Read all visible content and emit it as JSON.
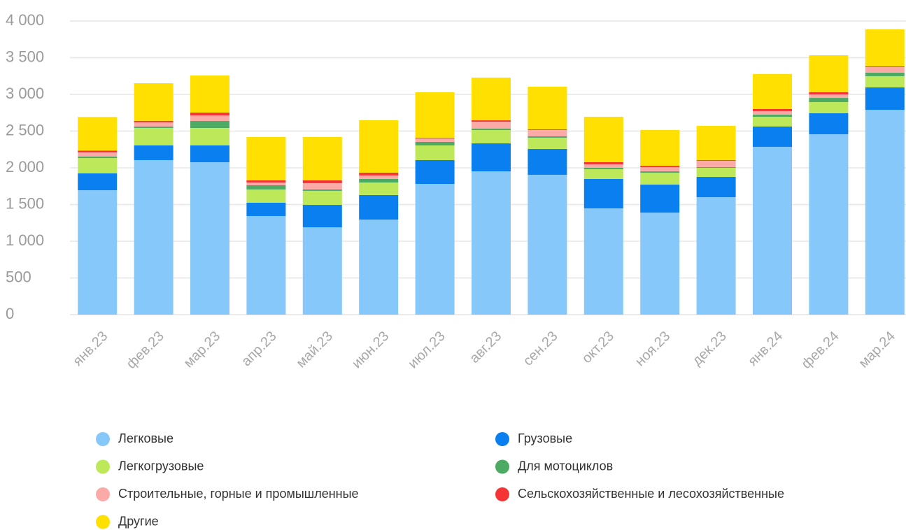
{
  "chart_data": {
    "type": "stacked_bar",
    "categories": [
      "янв.23",
      "фев.23",
      "мар.23",
      "апр.23",
      "май.23",
      "июн.23",
      "июл.23",
      "авг.23",
      "сен.23",
      "окт.23",
      "ноя.23",
      "дек.23",
      "янв.24",
      "фев.24",
      "мар.24"
    ],
    "ylim": [
      0,
      4000
    ],
    "yticks": [
      0,
      500,
      {
        "value": 1000,
        "label": "1 000"
      },
      {
        "value": 1500,
        "label": "1 500"
      },
      {
        "value": 2000,
        "label": "2 000"
      },
      {
        "value": 2500,
        "label": "2 500"
      },
      {
        "value": 3000,
        "label": "3 000"
      },
      {
        "value": 3500,
        "label": "3 500"
      },
      {
        "value": 4000,
        "label": "4 000"
      }
    ],
    "grid": true,
    "series": [
      {
        "name": "Легковые",
        "color": "#86c8fa",
        "values": [
          1695,
          2105,
          2076,
          1343,
          1190,
          1295,
          1781,
          1952,
          1905,
          1448,
          1390,
          1600,
          2286,
          2457,
          2790
        ]
      },
      {
        "name": "Грузовые",
        "color": "#0a7ff0",
        "values": [
          229,
          200,
          229,
          181,
          305,
          334,
          324,
          381,
          352,
          400,
          381,
          276,
          276,
          286,
          305
        ]
      },
      {
        "name": "Легкогрузовые",
        "color": "#bde85a",
        "values": [
          209,
          238,
          238,
          181,
          191,
          171,
          200,
          181,
          153,
          133,
          162,
          124,
          133,
          152,
          153
        ]
      },
      {
        "name": "Для мотоциклов",
        "color": "#4caa62",
        "values": [
          20,
          20,
          95,
          57,
          19,
          48,
          48,
          19,
          19,
          19,
          19,
          10,
          29,
          57,
          48
        ]
      },
      {
        "name": "Строительные, горные и промышленные",
        "color": "#fbaaa8",
        "values": [
          57,
          57,
          76,
          38,
          86,
          48,
          48,
          95,
          86,
          48,
          57,
          86,
          48,
          48,
          76
        ]
      },
      {
        "name": "Сельскохозяйственные и лесохозяйственные",
        "color": "#f53535",
        "values": [
          25,
          20,
          38,
          29,
          38,
          38,
          9,
          19,
          10,
          29,
          19,
          10,
          29,
          29,
          10
        ]
      },
      {
        "name": "Другие",
        "color": "#ffe000",
        "values": [
          457,
          512,
          505,
          590,
          591,
          714,
          619,
          582,
          580,
          618,
          486,
          465,
          476,
          504,
          504
        ]
      }
    ]
  }
}
